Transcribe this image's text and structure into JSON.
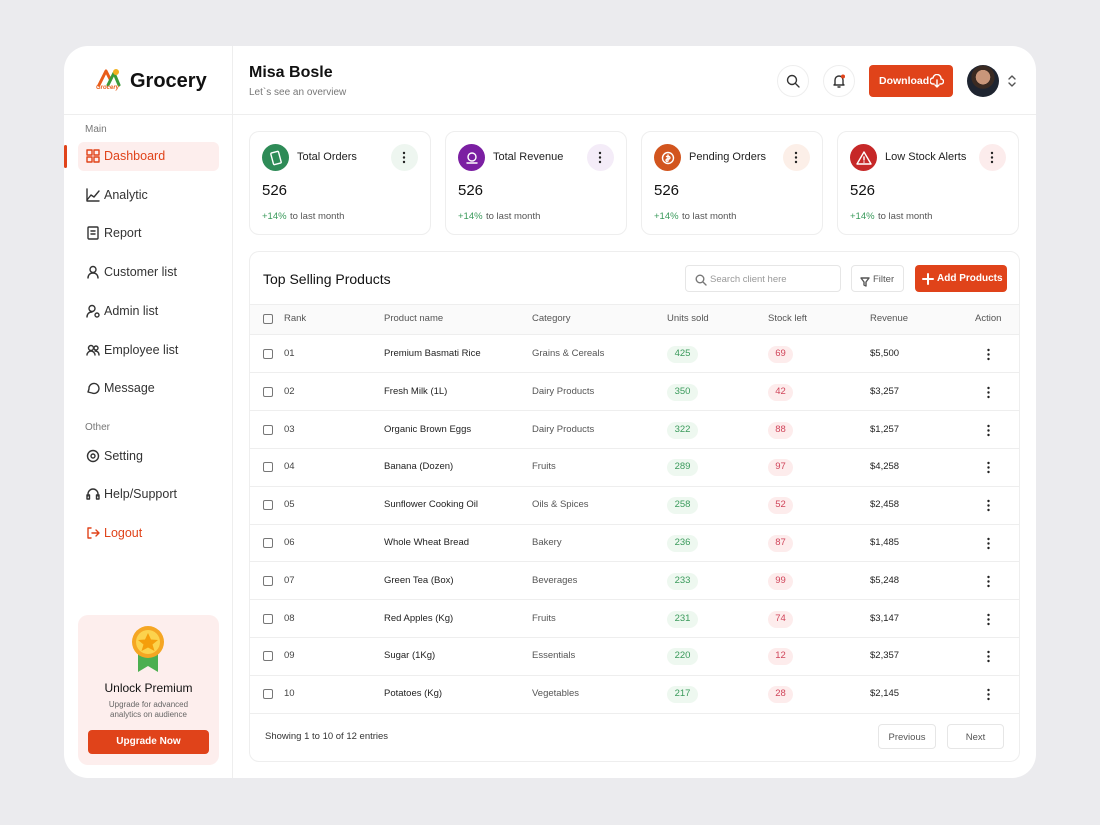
{
  "brand": {
    "logo_text": "Grocery",
    "name": "Grocery"
  },
  "sidebar": {
    "sections": [
      {
        "label": "Main",
        "items": [
          "Dashboard",
          "Analytic",
          "Report",
          "Customer list",
          "Admin list",
          "Employee list",
          "Message"
        ]
      },
      {
        "label": "Other",
        "items": [
          "Setting",
          "Help/Support",
          "Logout"
        ]
      }
    ],
    "premium": {
      "title": "Unlock Premium",
      "text": "Upgrade for advanced analytics on audience",
      "button": "Upgrade Now"
    }
  },
  "header": {
    "name": "Misa Bosle",
    "subtitle": "Let`s see an overview",
    "download": "Download"
  },
  "stats": [
    {
      "title": "Total Orders",
      "value": 526,
      "change": "+14%",
      "note": "to last month"
    },
    {
      "title": "Total Revenue",
      "value": 526,
      "change": "+14%",
      "note": "to last month"
    },
    {
      "title": "Pending Orders",
      "value": 526,
      "change": "+14%",
      "note": "to last month"
    },
    {
      "title": "Low Stock Alerts",
      "value": 526,
      "change": "+14%",
      "note": "to last month"
    }
  ],
  "table": {
    "title": "Top Selling Products",
    "search_placeholder": "Search client here",
    "filter": "Filter",
    "add": "Add Products",
    "columns": [
      "Rank",
      "Product name",
      "Category",
      "Units sold",
      "Stock left",
      "Revenue",
      "Action"
    ],
    "rows": [
      [
        "01",
        "Premium Basmati Rice",
        "Grains & Cereals",
        425,
        69,
        "$5,500"
      ],
      [
        "02",
        "Fresh Milk (1L)",
        "Dairy Products",
        350,
        42,
        "$3,257"
      ],
      [
        "03",
        "Organic Brown Eggs",
        "Dairy Products",
        322,
        88,
        "$1,257"
      ],
      [
        "04",
        "Banana (Dozen)",
        "Fruits",
        289,
        97,
        "$4,258"
      ],
      [
        "05",
        "Sunflower Cooking Oil",
        "Oils & Spices",
        258,
        52,
        "$2,458"
      ],
      [
        "06",
        "Whole Wheat Bread",
        "Bakery",
        236,
        87,
        "$1,485"
      ],
      [
        "07",
        "Green Tea (Box)",
        "Beverages",
        233,
        99,
        "$5,248"
      ],
      [
        "08",
        "Red Apples (Kg)",
        "Fruits",
        231,
        74,
        "$3,147"
      ],
      [
        "09",
        "Sugar (1Kg)",
        "Essentials",
        220,
        12,
        "$2,357"
      ],
      [
        "10",
        "Potatoes (Kg)",
        "Vegetables",
        217,
        28,
        "$2,145"
      ]
    ],
    "footer": {
      "info": "Showing 1 to 10 of 12 entries",
      "previous": "Previous",
      "next": "Next"
    }
  }
}
